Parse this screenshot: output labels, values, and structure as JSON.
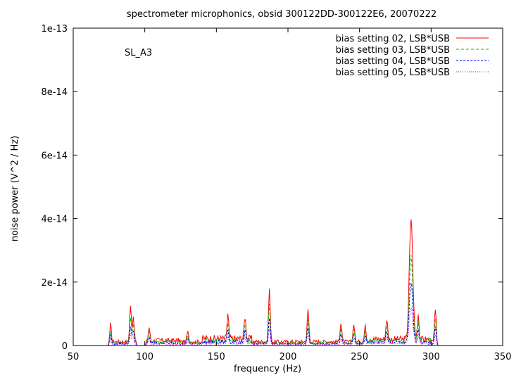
{
  "chart_data": {
    "type": "line",
    "title": "spectrometer microphonics, obsid 300122DD-300122E6, 20070222",
    "annotation": "SL_A3",
    "xlabel": "frequency (Hz)",
    "ylabel": "noise power (V^2 / Hz)",
    "xlim": [
      50,
      350
    ],
    "ylim": [
      0,
      1e-13
    ],
    "grid": false,
    "legend_position": "top-right",
    "x_ticks": [
      {
        "value": 50,
        "label": "50"
      },
      {
        "value": 100,
        "label": "100"
      },
      {
        "value": 150,
        "label": "150"
      },
      {
        "value": 200,
        "label": "200"
      },
      {
        "value": 250,
        "label": "250"
      },
      {
        "value": 300,
        "label": "300"
      },
      {
        "value": 350,
        "label": "350"
      }
    ],
    "y_ticks": [
      {
        "value": 0,
        "label": "0"
      },
      {
        "value": 2e-14,
        "label": "2e-14"
      },
      {
        "value": 4e-14,
        "label": "4e-14"
      },
      {
        "value": 6e-14,
        "label": "6e-14"
      },
      {
        "value": 8e-14,
        "label": "8e-14"
      },
      {
        "value": 1e-13,
        "label": "1e-13"
      }
    ],
    "peaks": [
      {
        "x": 76,
        "y": 5.5e-15
      },
      {
        "x": 90,
        "y": 1.1e-14
      },
      {
        "x": 92,
        "y": 8e-15
      },
      {
        "x": 103,
        "y": 4.5e-15
      },
      {
        "x": 130,
        "y": 3e-15
      },
      {
        "x": 158,
        "y": 7.5e-15
      },
      {
        "x": 170,
        "y": 7e-15
      },
      {
        "x": 187,
        "y": 1.65e-14
      },
      {
        "x": 214,
        "y": 1e-14
      },
      {
        "x": 237,
        "y": 6e-15
      },
      {
        "x": 246,
        "y": 5.5e-15
      },
      {
        "x": 254,
        "y": 5e-15
      },
      {
        "x": 269,
        "y": 6.5e-15
      },
      {
        "x": 286,
        "y": 3.8e-14
      },
      {
        "x": 291,
        "y": 8e-15
      },
      {
        "x": 303,
        "y": 1.05e-14
      }
    ],
    "series": [
      {
        "name": "bias setting 02, LSB*USB",
        "color": "#ff0000",
        "dash": "",
        "scale": 1.0
      },
      {
        "name": "bias setting 03, LSB*USB",
        "color": "#00c000",
        "dash": "4,3",
        "scale": 0.72
      },
      {
        "name": "bias setting 04, LSB*USB",
        "color": "#0000ff",
        "dash": "3,2",
        "scale": 0.5
      },
      {
        "name": "bias setting 05, LSB*USB",
        "color": "#c000c0",
        "dash": "1,2",
        "scale": 0.3
      }
    ]
  }
}
